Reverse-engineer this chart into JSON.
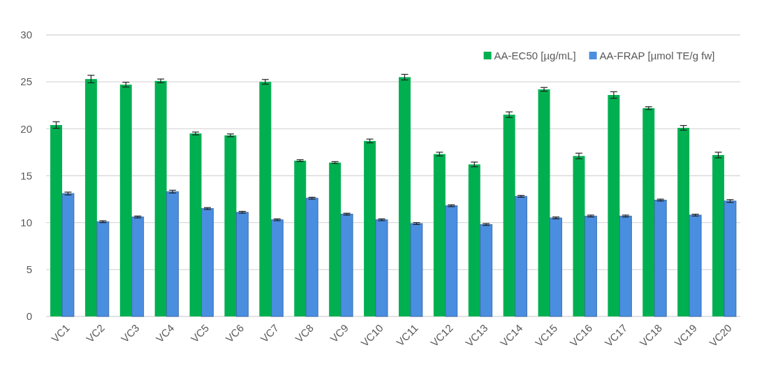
{
  "chart_data": {
    "type": "bar",
    "categories": [
      "VC1",
      "VC2",
      "VC3",
      "VC4",
      "VC5",
      "VC6",
      "VC7",
      "VC8",
      "VC9",
      "VC10",
      "VC11",
      "VC12",
      "VC13",
      "VC14",
      "VC15",
      "VC16",
      "VC17",
      "VC18",
      "VC19",
      "VC20"
    ],
    "series": [
      {
        "name": "AA-EC50 [µg/mL]",
        "color": "#00b050",
        "values": [
          20.4,
          25.3,
          24.7,
          25.1,
          19.5,
          19.3,
          25.0,
          16.6,
          16.4,
          18.7,
          25.5,
          17.3,
          16.2,
          21.5,
          24.2,
          17.1,
          23.6,
          22.2,
          20.1,
          17.2
        ],
        "errors": [
          0.35,
          0.4,
          0.25,
          0.2,
          0.15,
          0.15,
          0.25,
          0.1,
          0.1,
          0.2,
          0.3,
          0.2,
          0.25,
          0.3,
          0.2,
          0.3,
          0.35,
          0.15,
          0.25,
          0.3
        ]
      },
      {
        "name": "AA-FRAP [µmol TE/g fw]",
        "color": "#4a8ee0",
        "values": [
          13.1,
          10.1,
          10.6,
          13.3,
          11.5,
          11.1,
          10.3,
          12.6,
          10.9,
          10.3,
          9.9,
          11.8,
          9.8,
          12.8,
          10.5,
          10.7,
          10.7,
          12.4,
          10.8,
          12.3
        ],
        "errors": [
          0.15,
          0.1,
          0.1,
          0.15,
          0.1,
          0.1,
          0.1,
          0.1,
          0.1,
          0.1,
          0.1,
          0.1,
          0.1,
          0.1,
          0.1,
          0.1,
          0.1,
          0.1,
          0.1,
          0.15
        ]
      }
    ],
    "ylim": [
      0,
      30
    ],
    "yticks": [
      0,
      5,
      10,
      15,
      20,
      25,
      30
    ],
    "grid": "y",
    "legend": "top right"
  }
}
